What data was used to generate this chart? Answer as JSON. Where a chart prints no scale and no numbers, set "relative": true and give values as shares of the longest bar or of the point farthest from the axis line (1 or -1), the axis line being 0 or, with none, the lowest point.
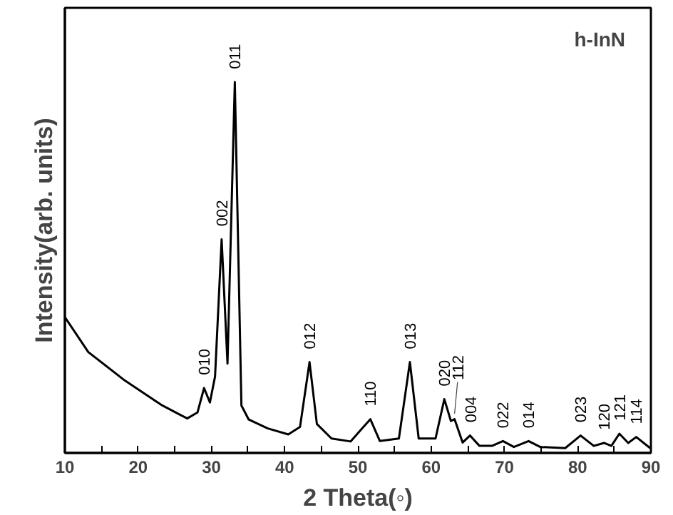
{
  "chart_data": {
    "type": "line",
    "relative": true,
    "xlabel": "2 Theta(◦)",
    "ylabel": "Intensity(arb. units)",
    "xlim": [
      10,
      90
    ],
    "xticks": [
      10,
      {
        "value": 15,
        "label": null
      },
      20,
      {
        "value": 25,
        "label": null
      },
      30,
      {
        "value": 35,
        "label": null
      },
      40,
      {
        "value": 45,
        "label": null
      },
      50,
      {
        "value": 55,
        "label": null
      },
      60,
      {
        "value": 65,
        "label": null
      },
      70,
      {
        "value": 75,
        "label": null
      },
      80,
      {
        "value": 85,
        "label": null
      },
      90
    ],
    "grid": false,
    "marker": "none",
    "line_style": "solid",
    "series": [
      {
        "color": "#000000",
        "x": [
          10,
          13.2,
          18.2,
          23.3,
          26.7,
          28.1,
          29.0,
          29.8,
          30.5,
          31.4,
          32.2,
          33.2,
          34.1,
          35.1,
          37.7,
          40.5,
          42.1,
          43.4,
          44.4,
          46.4,
          49.0,
          51.7,
          53.0,
          55.6,
          57.1,
          58.3,
          60.6,
          61.8,
          62.7,
          63.2,
          64.3,
          65.3,
          66.6,
          68.3,
          69.8,
          71.3,
          73.3,
          74.9,
          78.3,
          80.4,
          82.2,
          83.6,
          84.6,
          85.7,
          86.9,
          88.0,
          89.9
        ],
        "values": [
          0.366,
          0.272,
          0.195,
          0.128,
          0.093,
          0.109,
          0.175,
          0.136,
          0.206,
          0.576,
          0.241,
          1.0,
          0.128,
          0.09,
          0.066,
          0.05,
          0.07,
          0.245,
          0.078,
          0.039,
          0.031,
          0.091,
          0.032,
          0.039,
          0.245,
          0.039,
          0.039,
          0.145,
          0.086,
          0.091,
          0.028,
          0.047,
          0.019,
          0.019,
          0.032,
          0.016,
          0.032,
          0.016,
          0.013,
          0.047,
          0.019,
          0.027,
          0.019,
          0.052,
          0.027,
          0.043,
          0.013
        ]
      }
    ],
    "annotations": [
      {
        "text": "010",
        "x": 29.0,
        "y": 0.175
      },
      {
        "text": "002",
        "x": 31.4,
        "y": 0.576
      },
      {
        "text": "011",
        "x": 33.2,
        "y": 1.0
      },
      {
        "text": "012",
        "x": 43.4,
        "y": 0.245
      },
      {
        "text": "110",
        "x": 51.7,
        "y": 0.091
      },
      {
        "text": "013",
        "x": 57.1,
        "y": 0.245
      },
      {
        "text": "020",
        "x": 61.8,
        "y": 0.145
      },
      {
        "text": "112",
        "x": 63.2,
        "y": 0.091
      },
      {
        "text": "004",
        "x": 65.3,
        "y": 0.047
      },
      {
        "text": "022",
        "x": 69.8,
        "y": 0.032
      },
      {
        "text": "014",
        "x": 73.3,
        "y": 0.032
      },
      {
        "text": "023",
        "x": 80.4,
        "y": 0.047
      },
      {
        "text": "120",
        "x": 83.6,
        "y": 0.027
      },
      {
        "text": "121",
        "x": 85.7,
        "y": 0.052
      },
      {
        "text": "114",
        "x": 88.0,
        "y": 0.043
      },
      "h-InN"
    ]
  }
}
